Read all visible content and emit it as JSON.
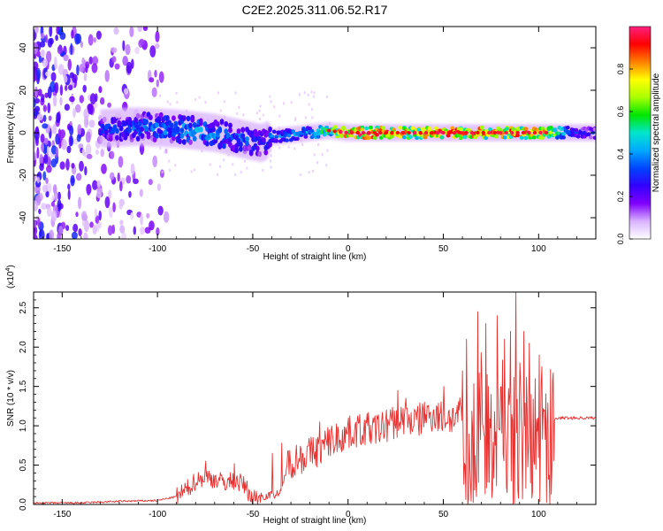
{
  "figure_title": "C2E2.2025.311.06.52.R17",
  "chart_data": [
    {
      "type": "heatmap",
      "title": "",
      "xlabel": "Height of straight line (km)",
      "ylabel": "Frequency (Hz)",
      "xlim": [
        -165,
        130
      ],
      "ylim": [
        -50,
        50
      ],
      "x_ticks": [
        -150,
        -100,
        -50,
        0,
        50,
        100
      ],
      "y_ticks": [
        -40,
        -20,
        0,
        20,
        40
      ],
      "colorbar": {
        "label": "Normalized spectral amplitude",
        "range": [
          0,
          1
        ],
        "ticks": [
          "0.0",
          "0.2",
          "0.4",
          "0.6",
          "0.8"
        ],
        "colors": [
          "#ffffff",
          "#d9b3ff",
          "#8000ff",
          "#3300ff",
          "#0044ff",
          "#00aaff",
          "#00e5cc",
          "#00e600",
          "#aaff00",
          "#ffff00",
          "#ff8000",
          "#ff0000",
          "#ff2080"
        ]
      },
      "ridge": {
        "x": [
          -130,
          -110,
          -90,
          -70,
          -55,
          -45,
          -40,
          -30,
          -20,
          -10,
          0,
          10,
          20,
          30,
          40,
          50,
          60,
          70,
          80,
          90,
          100,
          110,
          120,
          130
        ],
        "frequency": [
          2,
          3,
          2,
          0,
          -3,
          -5,
          -2,
          -1,
          0,
          1,
          0,
          0,
          0,
          0,
          0,
          0,
          0,
          0,
          0,
          0,
          0,
          0,
          0,
          0
        ],
        "amplitude": [
          0.3,
          0.35,
          0.4,
          0.4,
          0.35,
          0.3,
          0.35,
          0.4,
          0.45,
          0.6,
          0.85,
          0.9,
          0.85,
          0.8,
          0.85,
          0.9,
          0.85,
          0.85,
          0.8,
          0.85,
          0.85,
          0.6,
          0.3,
          0.3
        ]
      }
    },
    {
      "type": "line",
      "title": "",
      "xlabel": "Height of straight line (km)",
      "ylabel": "SNR (10 * v/v)",
      "y_multiplier": "(x10",
      "y_multiplier_exp": "4",
      "y_multiplier_close": ")",
      "xlim": [
        -165,
        130
      ],
      "ylim": [
        0,
        2.7
      ],
      "x_ticks": [
        -150,
        -100,
        -50,
        0,
        50,
        100
      ],
      "y_ticks": [
        "0.0",
        "0.5",
        "1.0",
        "1.5",
        "2.0",
        "2.5"
      ],
      "series": [
        {
          "color": "#e8302f",
          "x": [
            -165,
            -140,
            -120,
            -100,
            -90,
            -85,
            -80,
            -75,
            -70,
            -65,
            -60,
            -55,
            -50,
            -45,
            -40,
            -35,
            -32,
            -30,
            -25,
            -20,
            -15,
            -10,
            -5,
            0,
            5,
            10,
            15,
            20,
            25,
            30,
            35,
            40,
            45,
            50,
            55,
            60,
            63,
            66,
            70,
            75,
            80,
            85,
            90,
            95,
            100,
            105,
            110,
            115,
            120,
            125,
            130
          ],
          "y": [
            0.02,
            0.02,
            0.04,
            0.05,
            0.1,
            0.18,
            0.3,
            0.35,
            0.32,
            0.28,
            0.3,
            0.26,
            0.08,
            0.1,
            0.12,
            0.15,
            0.5,
            0.55,
            0.6,
            0.65,
            0.7,
            0.8,
            0.85,
            0.9,
            0.95,
            0.95,
            0.95,
            1.0,
            1.05,
            1.1,
            1.05,
            1.1,
            1.15,
            1.1,
            1.1,
            1.15,
            0.5,
            1.0,
            1.3,
            0.8,
            1.2,
            1.0,
            1.3,
            0.9,
            1.2,
            1.0,
            1.1,
            1.1,
            1.1,
            1.1,
            1.1
          ],
          "peaks": {
            "x": [
              -75,
              -60,
              -40,
              -35,
              -25,
              -15,
              -10,
              0,
              10,
              20,
              26,
              30,
              40,
              50,
              58,
              60,
              62,
              65,
              68,
              70,
              72,
              75,
              78,
              80,
              82,
              85,
              88,
              90,
              92,
              95,
              98,
              100,
              103
            ],
            "y": [
              0.55,
              0.52,
              0.65,
              0.78,
              0.7,
              1.05,
              0.95,
              1.1,
              1.0,
              1.2,
              1.45,
              1.35,
              1.3,
              1.5,
              1.2,
              1.7,
              2.1,
              1.0,
              2.45,
              1.6,
              2.3,
              1.4,
              2.4,
              1.5,
              2.1,
              2.2,
              2.7,
              1.8,
              2.2,
              2.05,
              1.6,
              1.9,
              1.2
            ]
          }
        }
      ]
    }
  ]
}
